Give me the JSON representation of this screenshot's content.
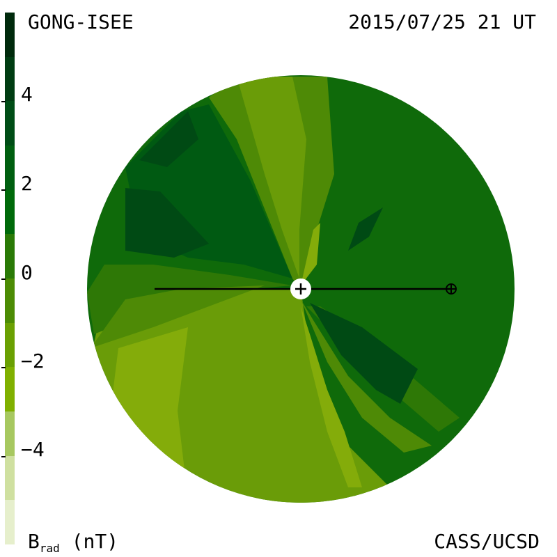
{
  "header": {
    "source_label": "GONG-ISEE",
    "timestamp": "2015/07/25 21 UT"
  },
  "footer": {
    "quantity_label": "B",
    "quantity_subscript": "rad",
    "unit_label": "(nT)",
    "credit": "CASS/UCSD"
  },
  "colorbar": {
    "tick_labels": [
      "4",
      "2",
      "0",
      "−2",
      "−4"
    ],
    "tick_values": [
      4,
      2,
      0,
      -2,
      -4
    ],
    "colors_top_to_bottom": [
      "#002a0c",
      "#003c12",
      "#004d16",
      "#005f10",
      "#006a0a",
      "#2a7a06",
      "#4c8c04",
      "#6aa002",
      "#80b000",
      "#a7c860",
      "#cfe0a0",
      "#e6efcc"
    ]
  },
  "map": {
    "colors": {
      "lightest": "#a2c22c",
      "light": "#84ac0a",
      "mid_light": "#6a9c08",
      "mid": "#4e8a06",
      "mid_dark": "#2e7806",
      "dark": "#0f6a0a",
      "darker": "#005a12",
      "darkest": "#004a14"
    },
    "markers": [
      "sun-marker",
      "earth-marker"
    ]
  }
}
